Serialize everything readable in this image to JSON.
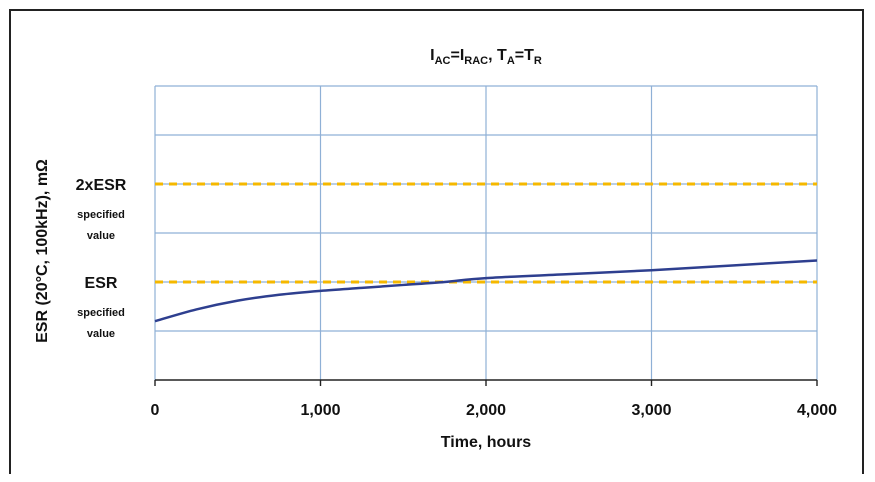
{
  "chart_data": {
    "type": "line",
    "title": {
      "parts": [
        {
          "text": "I",
          "sub": false
        },
        {
          "text": "AC",
          "sub": true
        },
        {
          "text": "=I",
          "sub": false
        },
        {
          "text": "RAC",
          "sub": true
        },
        {
          "text": ", T",
          "sub": false
        },
        {
          "text": "A",
          "sub": true
        },
        {
          "text": "=T",
          "sub": false
        },
        {
          "text": "R",
          "sub": true
        }
      ]
    },
    "xlabel": "Time, hours",
    "ylabel": "ESR (20°C, 100kHz), mΩ",
    "xlim": [
      0,
      4000
    ],
    "ylim": [
      0,
      3
    ],
    "x_ticks": [
      {
        "value": 0,
        "label": "0"
      },
      {
        "value": 1000,
        "label": "1,000"
      },
      {
        "value": 2000,
        "label": "2,000"
      },
      {
        "value": 3000,
        "label": "3,000"
      },
      {
        "value": 4000,
        "label": "4,000"
      }
    ],
    "y_gridlines": [
      0.5,
      1.0,
      1.5,
      2.0,
      2.5,
      3.0
    ],
    "grid": true,
    "reference_lines": [
      {
        "y": 1.0,
        "label": "ESR",
        "sublabel": [
          "specified",
          "value"
        ],
        "color": "#F5B800",
        "style": "dashed"
      },
      {
        "y": 2.0,
        "label": "2xESR",
        "sublabel": [
          "specified",
          "value"
        ],
        "color": "#F5B800",
        "style": "dashed"
      }
    ],
    "series": [
      {
        "color": "#2E3F8F",
        "x": [
          0,
          250,
          500,
          750,
          1000,
          1250,
          1500,
          1750,
          2000,
          2500,
          3000,
          3500,
          4000
        ],
        "y": [
          0.6,
          0.72,
          0.81,
          0.87,
          0.91,
          0.94,
          0.97,
          1.0,
          1.04,
          1.08,
          1.12,
          1.17,
          1.22
        ]
      }
    ],
    "colors": {
      "grid": "#8FB0D6",
      "axis": "#222222"
    }
  }
}
